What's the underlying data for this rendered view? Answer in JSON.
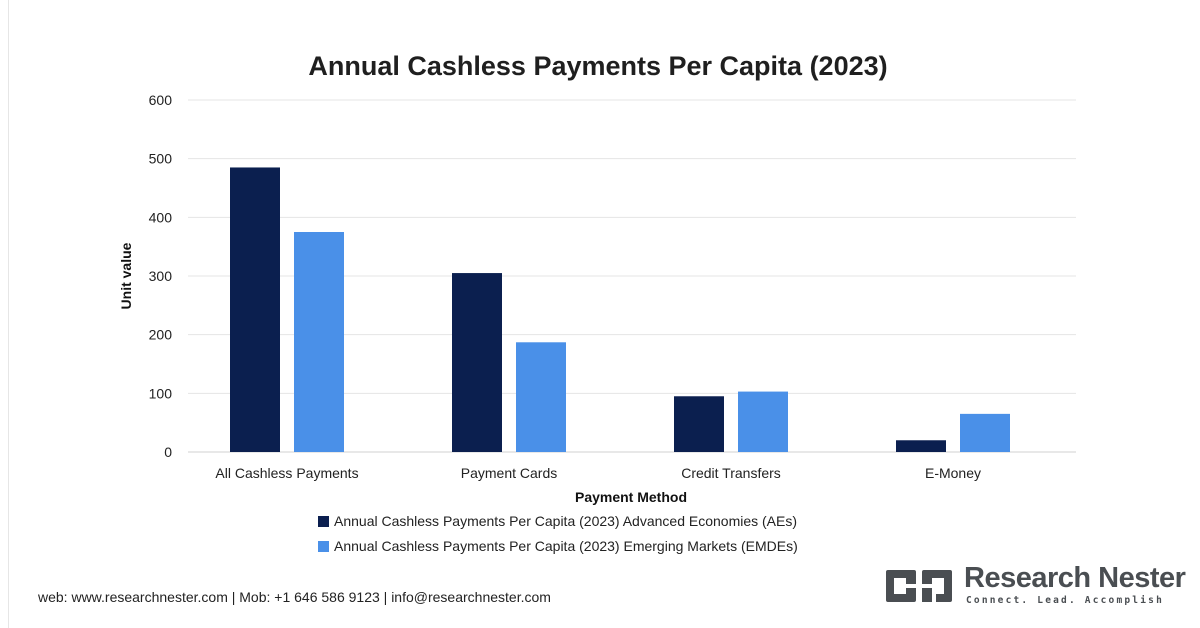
{
  "chart_data": {
    "type": "bar",
    "title": "Annual Cashless Payments Per Capita (2023)",
    "xlabel": "Payment Method",
    "ylabel": "Unit value",
    "categories": [
      "All Cashless Payments",
      "Payment Cards",
      "Credit Transfers",
      "E-Money"
    ],
    "series": [
      {
        "name": "Annual Cashless Payments Per Capita (2023) Advanced Economies (AEs)",
        "color": "#0b1f4f",
        "values": [
          485,
          305,
          95,
          20
        ]
      },
      {
        "name": "Annual Cashless Payments Per Capita (2023) Emerging Markets (EMDEs)",
        "color": "#4a90e8",
        "values": [
          375,
          187,
          103,
          65
        ]
      }
    ],
    "ylim": [
      0,
      600
    ],
    "yticks": [
      0,
      100,
      200,
      300,
      400,
      500,
      600
    ],
    "grid": true,
    "legend_position": "bottom"
  },
  "footer": {
    "contact": "web: www.researchnester.com | Mob: +1 646 586 9123 | info@researchnester.com"
  },
  "brand": {
    "name": "Research Nester",
    "tagline": "Connect. Lead. Accomplish",
    "logo_icon": "research-nester-logo",
    "color": "#4a4e52"
  }
}
